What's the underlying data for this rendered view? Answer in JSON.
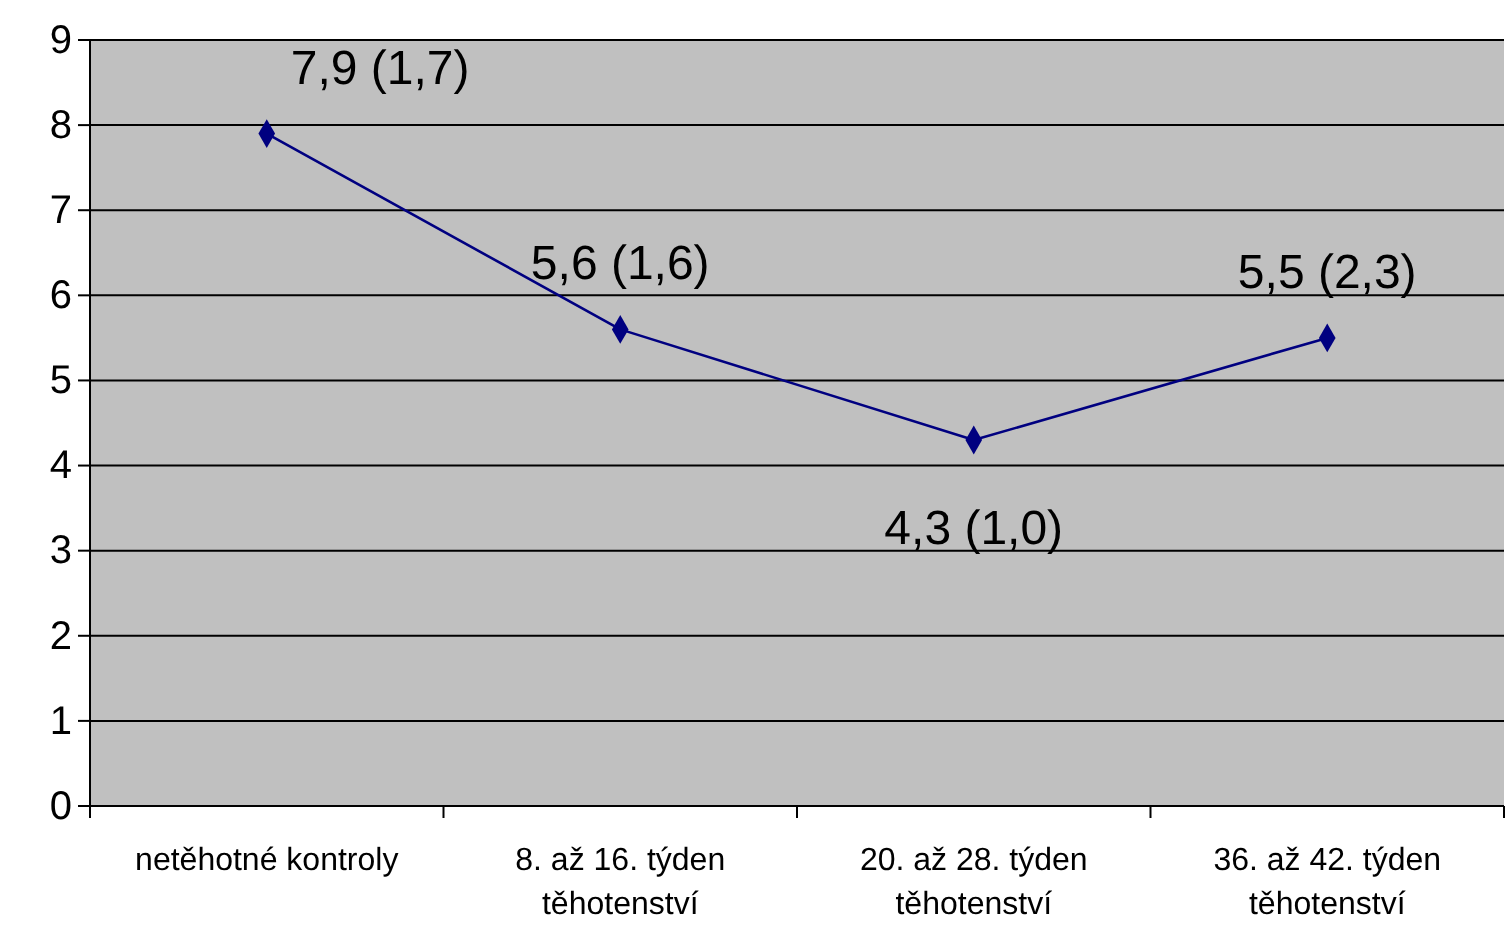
{
  "chart_data": {
    "type": "line",
    "categories": [
      "netěhotné kontroly",
      "8. až 16. týden těhotenství",
      "20. až 28. týden těhotenství",
      "36. až 42. týden těhotenství"
    ],
    "series": [
      {
        "color": "#000080",
        "values": [
          7.9,
          5.6,
          4.3,
          5.5
        ]
      }
    ],
    "value_labels": [
      "7,9 (1,7)",
      "5,6 (1,6)",
      "4,3 (1,0)",
      "5,5 (2,3)"
    ],
    "ylim": [
      0,
      9
    ],
    "yticks": [
      0,
      1,
      2,
      3,
      4,
      5,
      6,
      7,
      8,
      9
    ],
    "grid": "y",
    "marker": "diamond",
    "line_style": "solid"
  }
}
